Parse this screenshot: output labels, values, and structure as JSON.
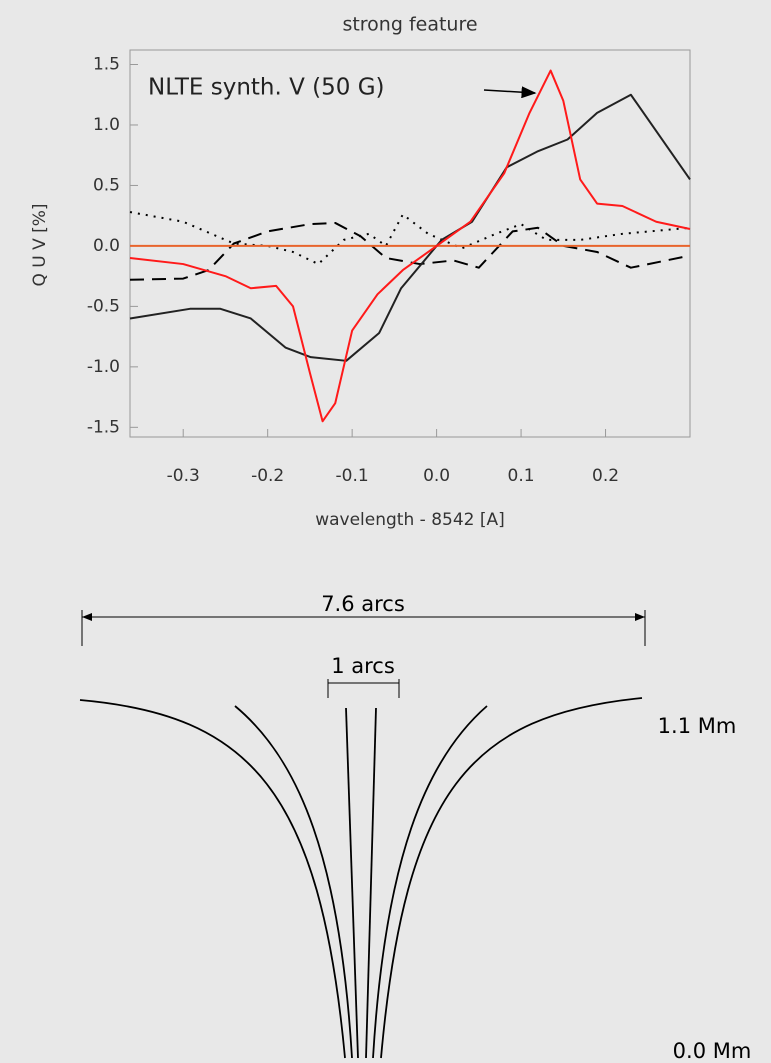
{
  "chart_data": {
    "type": "line",
    "title": "strong feature",
    "x_label": "wavelength - 8542 [A]",
    "y_label": "Q U V [%]",
    "annotation": "NLTE synth. V (50 G)",
    "xlim": [
      -0.363,
      0.3
    ],
    "ylim": [
      -1.58,
      1.62
    ],
    "xticks": [
      -0.3,
      -0.2,
      -0.1,
      {
        "value": 0,
        "label": "0.0"
      },
      0.1,
      0.2
    ],
    "yticks": [
      1.5,
      {
        "value": 1,
        "label": "1.0"
      },
      0.5,
      {
        "value": 0,
        "label": "0.0"
      },
      -0.5,
      {
        "value": -1,
        "label": "-1.0"
      },
      -1.5
    ],
    "series": [
      {
        "color": "#000000",
        "linestyle": "dotted",
        "x": [
          -0.363,
          -0.3,
          -0.24,
          -0.2,
          -0.17,
          -0.14,
          -0.11,
          -0.08,
          -0.06,
          -0.04,
          -0.01,
          0.03,
          0.07,
          0.1,
          0.13,
          0.17,
          0.22,
          0.3
        ],
        "values": [
          0.28,
          0.2,
          0.02,
          0.0,
          -0.05,
          -0.15,
          0.05,
          0.1,
          0.0,
          0.26,
          0.1,
          -0.02,
          0.1,
          0.18,
          0.05,
          0.05,
          0.1,
          0.15
        ]
      },
      {
        "color": "#000000",
        "linestyle": "dashed",
        "x": [
          -0.363,
          -0.3,
          -0.27,
          -0.24,
          -0.2,
          -0.15,
          -0.12,
          -0.09,
          -0.06,
          -0.02,
          0.02,
          0.05,
          0.09,
          0.12,
          0.15,
          0.19,
          0.23,
          0.3
        ],
        "values": [
          -0.28,
          -0.27,
          -0.2,
          0.02,
          0.12,
          0.18,
          0.19,
          0.08,
          -0.1,
          -0.15,
          -0.12,
          -0.18,
          0.12,
          0.15,
          0.0,
          -0.05,
          -0.18,
          -0.08
        ]
      },
      {
        "color": "#e8642c",
        "linestyle": "solid",
        "x": [
          -0.363,
          0.3
        ],
        "values": [
          0,
          0
        ]
      },
      {
        "color": "#222222",
        "linestyle": "solid",
        "x": [
          -0.363,
          -0.292,
          -0.256,
          -0.22,
          -0.179,
          -0.149,
          -0.107,
          -0.068,
          -0.042,
          0.006,
          0.042,
          0.083,
          0.119,
          0.155,
          0.19,
          0.23,
          0.3
        ],
        "values": [
          -0.6,
          -0.52,
          -0.52,
          -0.6,
          -0.84,
          -0.92,
          -0.95,
          -0.72,
          -0.35,
          0.05,
          0.2,
          0.65,
          0.78,
          0.88,
          1.1,
          1.25,
          0.55
        ]
      },
      {
        "color": "#ff1a1a",
        "linestyle": "solid",
        "x": [
          -0.363,
          -0.3,
          -0.25,
          -0.22,
          -0.19,
          -0.17,
          -0.15,
          -0.135,
          -0.12,
          -0.1,
          -0.07,
          -0.04,
          0,
          0.04,
          0.08,
          0.11,
          0.135,
          0.15,
          0.17,
          0.19,
          0.22,
          0.26,
          0.3
        ],
        "values": [
          -0.1,
          -0.15,
          -0.25,
          -0.35,
          -0.33,
          -0.5,
          -1.05,
          -1.45,
          -1.3,
          -0.7,
          -0.4,
          -0.2,
          0.0,
          0.2,
          0.6,
          1.1,
          1.45,
          1.2,
          0.55,
          0.35,
          0.33,
          0.2,
          0.14
        ]
      }
    ]
  },
  "diagram": {
    "width_label": "7.6 arcs",
    "inner_label": "1 arcs",
    "top_height": "1.1 Mm",
    "bottom_height": "0.0 Mm"
  }
}
